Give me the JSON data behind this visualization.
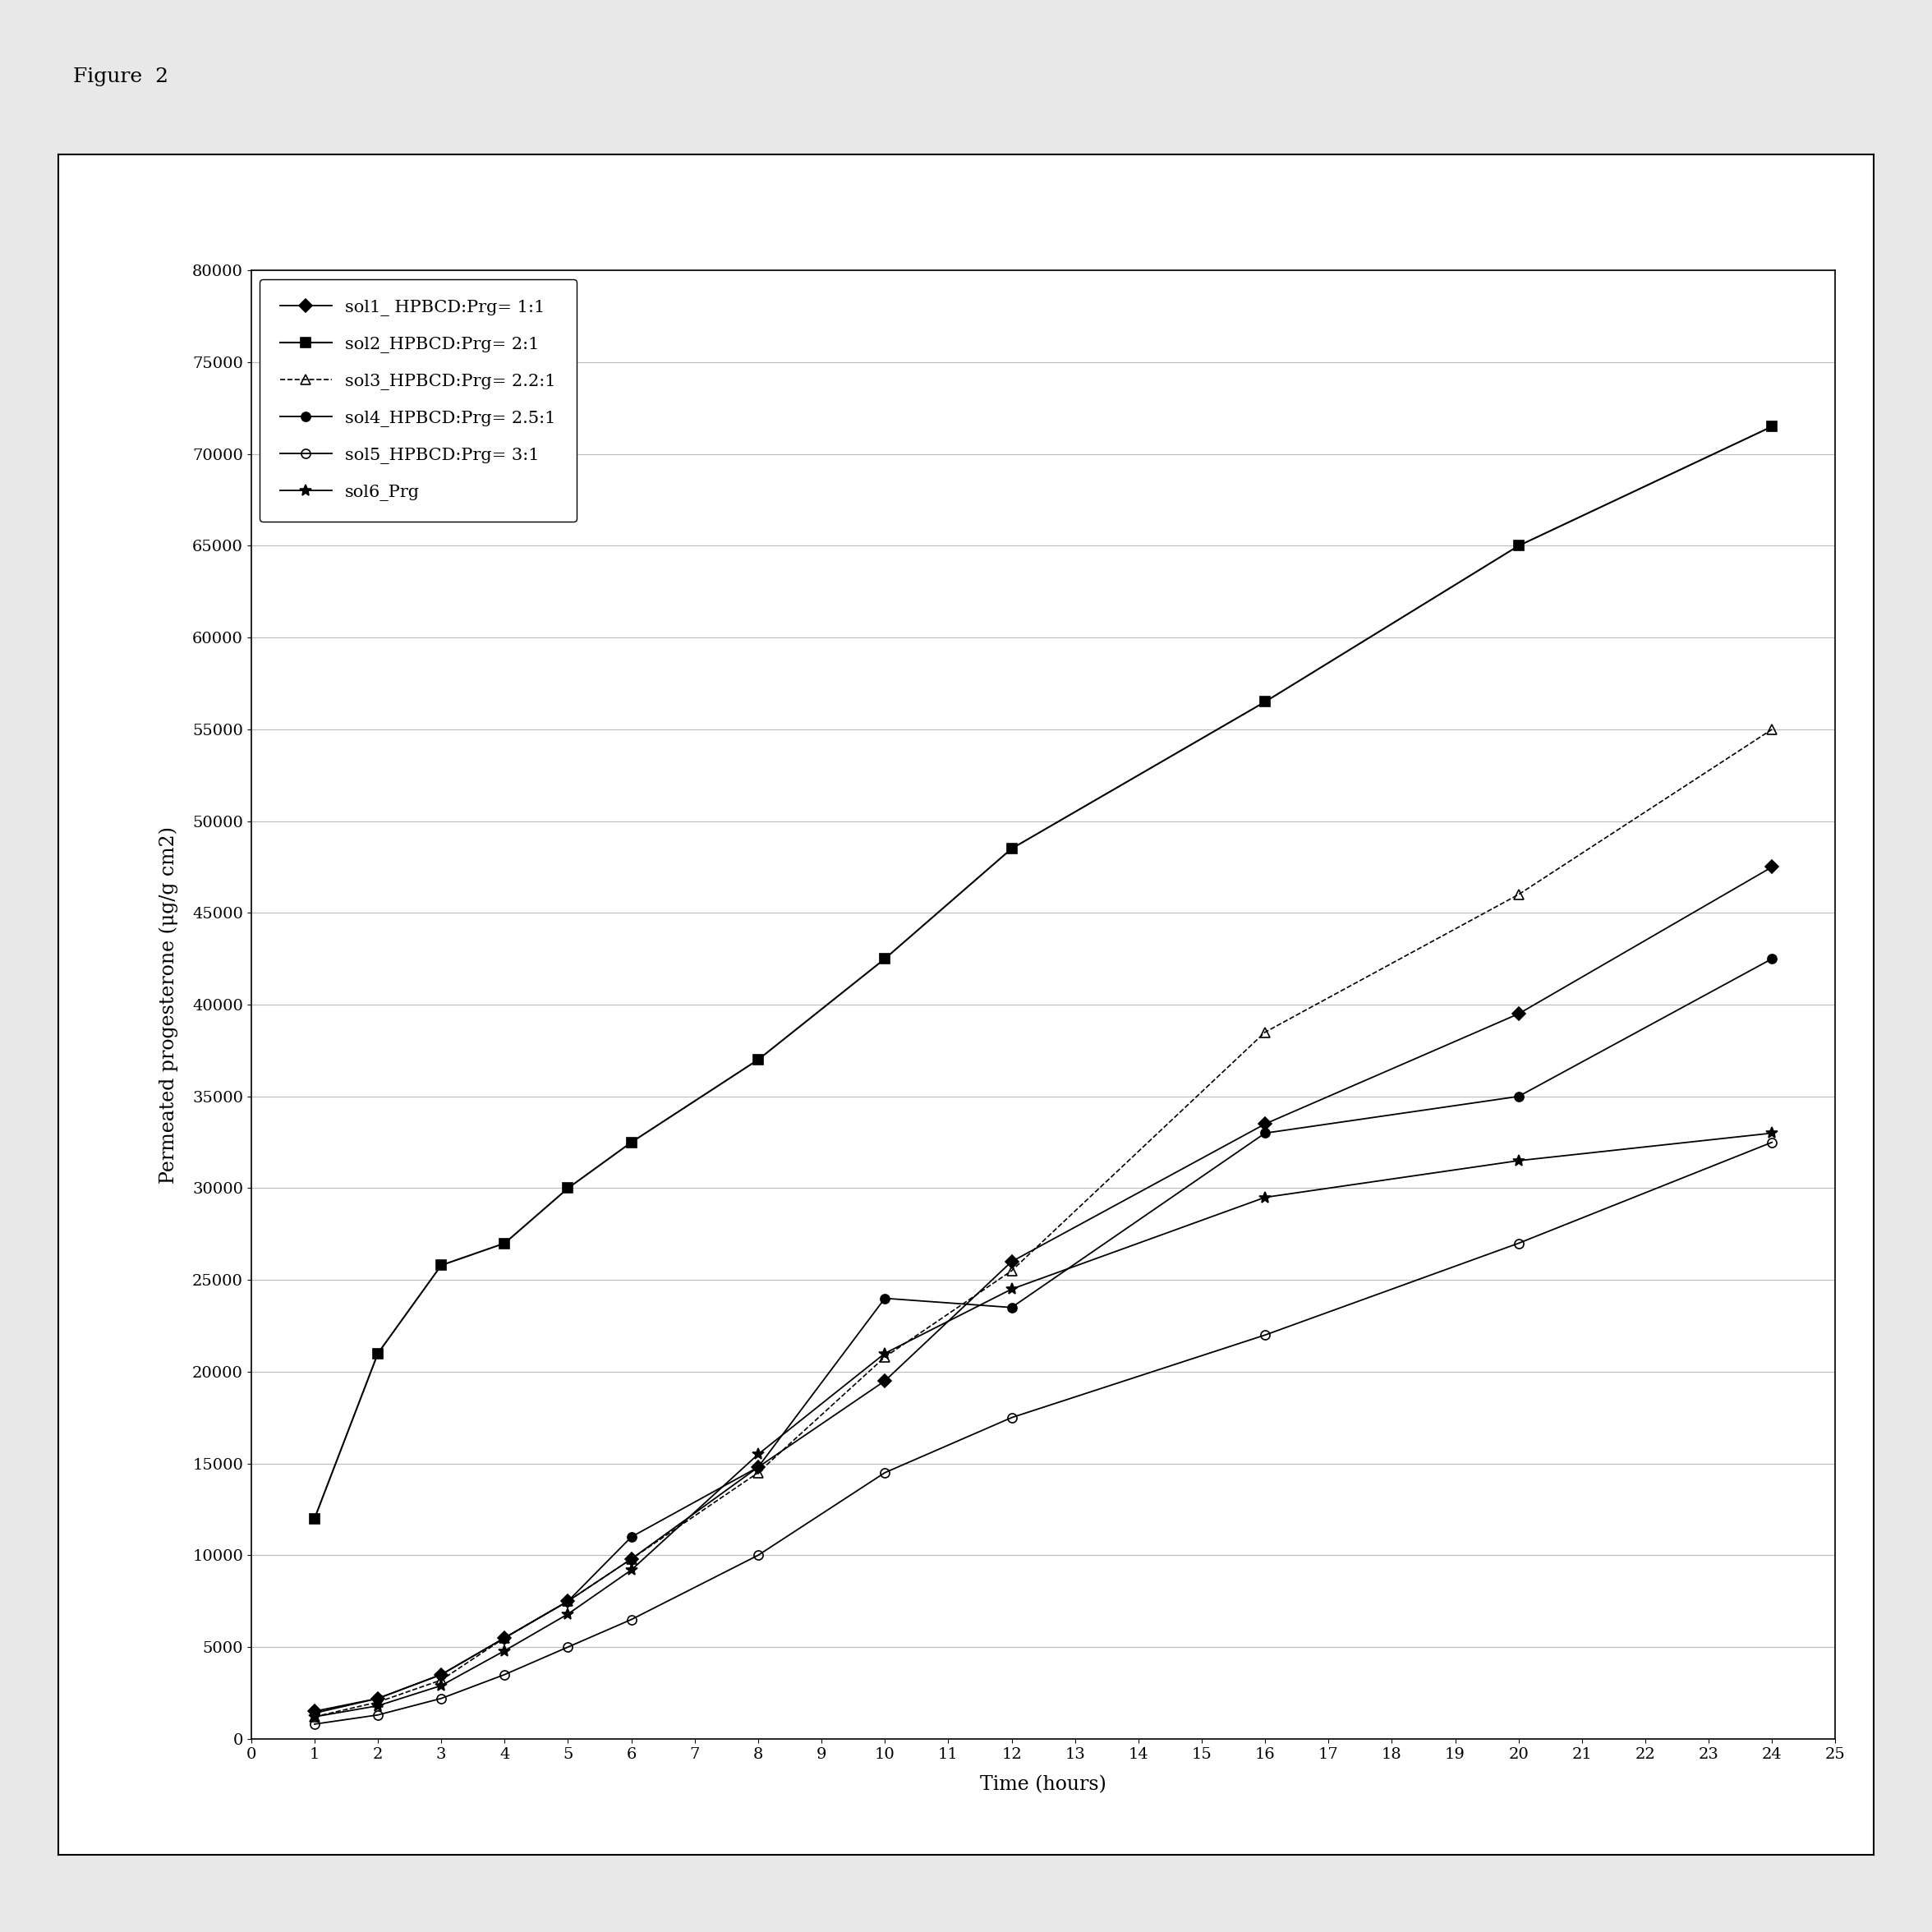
{
  "figure_title": "Figure  2",
  "xlabel": "Time (hours)",
  "ylabel": "Permeated progesterone (μg/g cm2)",
  "xlim": [
    0,
    25
  ],
  "ylim": [
    0,
    80000
  ],
  "yticks": [
    0,
    5000,
    10000,
    15000,
    20000,
    25000,
    30000,
    35000,
    40000,
    45000,
    50000,
    55000,
    60000,
    65000,
    70000,
    75000,
    80000
  ],
  "xticks": [
    0,
    1,
    2,
    3,
    4,
    5,
    6,
    7,
    8,
    9,
    10,
    11,
    12,
    13,
    14,
    15,
    16,
    17,
    18,
    19,
    20,
    21,
    22,
    23,
    24,
    25
  ],
  "series": [
    {
      "label": "sol1_ HPBCD:Prg= 1:1",
      "x": [
        1,
        2,
        3,
        4,
        5,
        6,
        8,
        10,
        12,
        16,
        20,
        24
      ],
      "y": [
        1500,
        2200,
        3500,
        5500,
        7500,
        9800,
        14800,
        19500,
        26000,
        33500,
        39500,
        47500
      ],
      "marker": "D",
      "markersize": 8,
      "color": "#000000",
      "linestyle": "-",
      "linewidth": 1.3,
      "fillstyle": "full"
    },
    {
      "label": "sol2_HPBCD:Prg= 2:1",
      "x": [
        1,
        2,
        3,
        4,
        5,
        6,
        8,
        10,
        12,
        16,
        20,
        24
      ],
      "y": [
        12000,
        21000,
        25800,
        27000,
        30000,
        32500,
        37000,
        42500,
        48500,
        56500,
        65000,
        71500
      ],
      "marker": "s",
      "markersize": 8,
      "color": "#000000",
      "linestyle": "-",
      "linewidth": 1.5,
      "fillstyle": "full"
    },
    {
      "label": "sol3_HPBCD:Prg= 2.2:1",
      "x": [
        1,
        2,
        3,
        4,
        5,
        6,
        8,
        10,
        12,
        16,
        20,
        24
      ],
      "y": [
        1200,
        2000,
        3200,
        5500,
        7500,
        9800,
        14500,
        20800,
        25500,
        38500,
        46000,
        55000
      ],
      "marker": "^",
      "markersize": 8,
      "color": "#000000",
      "linestyle": "--",
      "linewidth": 1.2,
      "fillstyle": "none"
    },
    {
      "label": "sol4_HPBCD:Prg= 2.5:1",
      "x": [
        1,
        2,
        3,
        4,
        5,
        6,
        8,
        10,
        12,
        16,
        20,
        24
      ],
      "y": [
        1400,
        2200,
        3500,
        5500,
        7500,
        11000,
        14800,
        24000,
        23500,
        33000,
        35000,
        42500
      ],
      "marker": "o",
      "markersize": 8,
      "color": "#000000",
      "linestyle": "-",
      "linewidth": 1.3,
      "fillstyle": "full"
    },
    {
      "label": "sol5_HPBCD:Prg= 3:1",
      "x": [
        1,
        2,
        3,
        4,
        5,
        6,
        8,
        10,
        12,
        16,
        20,
        24
      ],
      "y": [
        800,
        1300,
        2200,
        3500,
        5000,
        6500,
        10000,
        14500,
        17500,
        22000,
        27000,
        32500
      ],
      "marker": "o",
      "markersize": 8,
      "color": "#000000",
      "linestyle": "-",
      "linewidth": 1.3,
      "fillstyle": "none"
    },
    {
      "label": "sol6_Prg",
      "x": [
        1,
        2,
        3,
        4,
        5,
        6,
        8,
        10,
        12,
        16,
        20,
        24
      ],
      "y": [
        1200,
        1800,
        2900,
        4800,
        6800,
        9200,
        15500,
        21000,
        24500,
        29500,
        31500,
        33000
      ],
      "marker": "*",
      "markersize": 10,
      "color": "#000000",
      "linestyle": "-",
      "linewidth": 1.3,
      "fillstyle": "full"
    }
  ],
  "legend_loc": "upper left",
  "legend_fontsize": 15,
  "axis_label_fontsize": 17,
  "tick_fontsize": 14,
  "figure_title_fontsize": 18,
  "background_color": "#ffffff",
  "outer_bg": "#f0f0f0",
  "grid_color": "#bbbbbb",
  "grid_linestyle": "-",
  "grid_linewidth": 0.8
}
